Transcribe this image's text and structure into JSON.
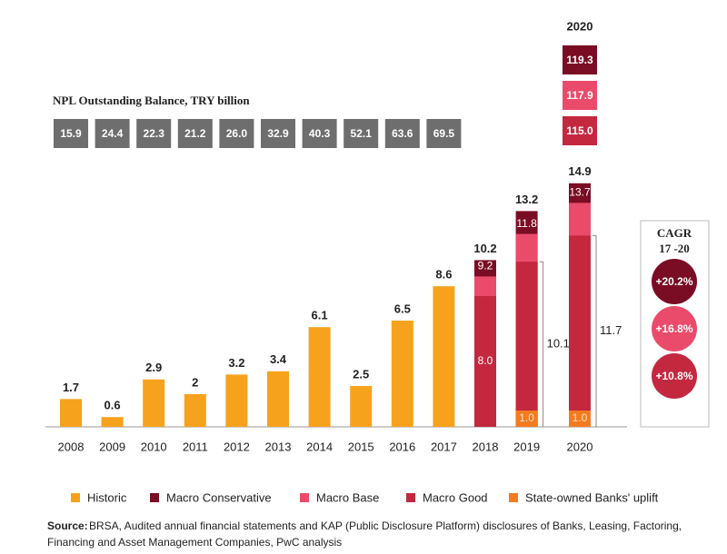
{
  "chart_data": {
    "type": "bar",
    "title": "NPL Outstanding Balance, TRY billion",
    "categories": [
      "2008",
      "2009",
      "2010",
      "2011",
      "2012",
      "2013",
      "2014",
      "2015",
      "2016",
      "2017",
      "2018",
      "2019",
      "2020"
    ],
    "series": [
      {
        "name": "Historic",
        "color": "#f6a21d",
        "values": [
          1.7,
          0.6,
          2.9,
          2.0,
          3.2,
          3.4,
          6.1,
          2.5,
          6.5,
          8.6,
          null,
          null,
          null
        ],
        "balance": [
          15.9,
          24.4,
          22.3,
          21.2,
          26.0,
          32.9,
          40.3,
          52.1,
          63.6,
          69.5,
          null,
          null,
          null
        ],
        "balance_labels": [
          "15.9",
          "24.4",
          "22.3",
          "21.2",
          "26.0",
          "32.9",
          "40.3",
          "52.1",
          "63.6",
          "69.5",
          null,
          null,
          null
        ]
      },
      {
        "name": "Macro Conservative",
        "color": "#7a0d23",
        "values": [
          null,
          null,
          null,
          null,
          null,
          null,
          null,
          null,
          null,
          null,
          10.2,
          13.2,
          14.9
        ],
        "balance": [
          null,
          null,
          null,
          null,
          null,
          null,
          null,
          null,
          null,
          null,
          null,
          null,
          119.3
        ],
        "cagr": 20.2,
        "cagr_label": "+20.2%"
      },
      {
        "name": "Macro Base",
        "color": "#eb4b6a",
        "values": [
          null,
          null,
          null,
          null,
          null,
          null,
          null,
          null,
          null,
          null,
          9.2,
          11.8,
          13.7
        ],
        "balance": [
          null,
          null,
          null,
          null,
          null,
          null,
          null,
          null,
          null,
          null,
          null,
          null,
          117.9
        ],
        "cagr": 16.8,
        "cagr_label": "+16.8%"
      },
      {
        "name": "Macro Good",
        "color": "#c3283f",
        "values": [
          null,
          null,
          null,
          null,
          null,
          null,
          null,
          null,
          null,
          null,
          8.0,
          10.1,
          11.7
        ],
        "value_labels": [
          null,
          null,
          null,
          null,
          null,
          null,
          null,
          null,
          null,
          null,
          "8.0",
          "10.1",
          "11.7"
        ],
        "balance": [
          null,
          null,
          null,
          null,
          null,
          null,
          null,
          null,
          null,
          null,
          null,
          null,
          115.0
        ],
        "balance_labels": [
          null,
          null,
          null,
          null,
          null,
          null,
          null,
          null,
          null,
          null,
          null,
          null,
          "115.0"
        ],
        "cagr": 10.8,
        "cagr_label": "+10.8%"
      },
      {
        "name": "State-owned Banks' uplift",
        "color": "#f47b20",
        "values": [
          null,
          null,
          null,
          null,
          null,
          null,
          null,
          null,
          null,
          null,
          null,
          1.0,
          1.0
        ],
        "value_labels": [
          null,
          null,
          null,
          null,
          null,
          null,
          null,
          null,
          null,
          null,
          null,
          "1.0",
          "1.0"
        ]
      }
    ],
    "ylim": [
      0,
      16
    ],
    "cagr_title": "CAGR",
    "cagr_period": "17 -20",
    "source_label": "Source:",
    "source": "BRSA, Audited annual financial statements and KAP (Public Disclosure Platform) disclosures of Banks, Leasing, Factoring, Financing and Asset Management Companies, PwC analysis"
  }
}
